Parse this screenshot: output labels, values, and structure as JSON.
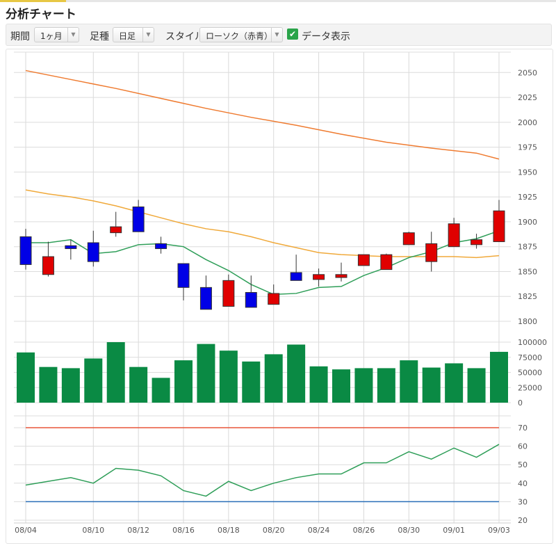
{
  "page": {
    "title": "分析チャート"
  },
  "toolbar": {
    "period_label": "期間",
    "period_value": "1ヶ月",
    "interval_label": "足種",
    "interval_value": "日足",
    "style_label": "スタイル",
    "style_value": "ローソク（赤青）",
    "data_display_label": "データ表示",
    "data_display_checked": true
  },
  "colors": {
    "up": "#e00000",
    "down": "#0000e6",
    "volume": "#0a8a44",
    "ma_short": "#2e9e58",
    "ma_mid": "#f0a93a",
    "ma_long": "#ef7b30",
    "rsi": "#2e9e58",
    "rsi_upper": "#e8553a",
    "rsi_lower": "#2a6fb8"
  },
  "chart_data": [
    {
      "type": "candlestick",
      "panel": "price",
      "ylim": [
        1800,
        2060
      ],
      "y_ticks": [
        "2050",
        "2025",
        "2000",
        "1975",
        "1950",
        "1925",
        "1900",
        "1875",
        "1850",
        "1825",
        "1800"
      ],
      "candles": [
        {
          "o": 1885,
          "h": 1893,
          "l": 1852,
          "c": 1857
        },
        {
          "o": 1847,
          "h": 1880,
          "l": 1845,
          "c": 1865
        },
        {
          "o": 1876,
          "h": 1882,
          "l": 1862,
          "c": 1873
        },
        {
          "o": 1879,
          "h": 1891,
          "l": 1855,
          "c": 1860
        },
        {
          "o": 1889,
          "h": 1910,
          "l": 1885,
          "c": 1895
        },
        {
          "o": 1915,
          "h": 1922,
          "l": 1890,
          "c": 1890
        },
        {
          "o": 1878,
          "h": 1885,
          "l": 1868,
          "c": 1873
        },
        {
          "o": 1858,
          "h": 1858,
          "l": 1821,
          "c": 1834
        },
        {
          "o": 1834,
          "h": 1846,
          "l": 1812,
          "c": 1812
        },
        {
          "o": 1815,
          "h": 1847,
          "l": 1815,
          "c": 1841
        },
        {
          "o": 1829,
          "h": 1846,
          "l": 1814,
          "c": 1814
        },
        {
          "o": 1817,
          "h": 1837,
          "l": 1817,
          "c": 1828
        },
        {
          "o": 1849,
          "h": 1867,
          "l": 1841,
          "c": 1841
        },
        {
          "o": 1842,
          "h": 1853,
          "l": 1835,
          "c": 1847
        },
        {
          "o": 1844,
          "h": 1859,
          "l": 1840,
          "c": 1847
        },
        {
          "o": 1856,
          "h": 1867,
          "l": 1856,
          "c": 1867
        },
        {
          "o": 1852,
          "h": 1868,
          "l": 1852,
          "c": 1867
        },
        {
          "o": 1877,
          "h": 1890,
          "l": 1877,
          "c": 1889
        },
        {
          "o": 1860,
          "h": 1890,
          "l": 1850,
          "c": 1878
        },
        {
          "o": 1875,
          "h": 1904,
          "l": 1875,
          "c": 1898
        },
        {
          "o": 1877,
          "h": 1888,
          "l": 1873,
          "c": 1882
        },
        {
          "o": 1880,
          "h": 1922,
          "l": 1880,
          "c": 1911
        }
      ],
      "ma_short": [
        1879,
        1879,
        1882,
        1868,
        1870,
        1877,
        1878,
        1875,
        1862,
        1851,
        1837,
        1827,
        1828,
        1834,
        1835,
        1846,
        1854,
        1864,
        1870,
        1879,
        1883,
        1891
      ],
      "ma_mid_points": [
        [
          0,
          1932
        ],
        [
          1,
          1928
        ],
        [
          2,
          1925
        ],
        [
          3,
          1921
        ],
        [
          4,
          1916
        ],
        [
          5,
          1910
        ],
        [
          6,
          1904
        ],
        [
          7,
          1898
        ],
        [
          8,
          1893
        ],
        [
          9,
          1890
        ],
        [
          10,
          1885
        ],
        [
          11,
          1879
        ],
        [
          12,
          1874
        ],
        [
          13,
          1869
        ],
        [
          14,
          1867
        ],
        [
          15,
          1866
        ],
        [
          16,
          1865
        ],
        [
          17,
          1865
        ],
        [
          18,
          1865
        ],
        [
          19,
          1865
        ],
        [
          20,
          1864
        ],
        [
          21,
          1866
        ]
      ],
      "ma_long_points": [
        [
          0,
          2052
        ],
        [
          2,
          2043
        ],
        [
          4,
          2034
        ],
        [
          6,
          2024
        ],
        [
          8,
          2014
        ],
        [
          10,
          2005
        ],
        [
          12,
          1997
        ],
        [
          14,
          1988
        ],
        [
          16,
          1980
        ],
        [
          18,
          1974
        ],
        [
          20,
          1969
        ],
        [
          21,
          1963
        ]
      ]
    },
    {
      "type": "bar",
      "panel": "volume",
      "ylim": [
        0,
        100000
      ],
      "y_ticks": [
        "100000",
        "75000",
        "50000",
        "25000",
        "0"
      ],
      "values": [
        83000,
        59000,
        57000,
        73000,
        100000,
        59000,
        41000,
        70000,
        97000,
        86000,
        68000,
        80000,
        96000,
        60000,
        55000,
        57000,
        57000,
        70000,
        58000,
        65000,
        57000,
        84000
      ]
    },
    {
      "type": "line",
      "panel": "rsi",
      "ylim": [
        20,
        70
      ],
      "y_ticks": [
        "70",
        "60",
        "50",
        "40",
        "30",
        "20"
      ],
      "upper_line": 70,
      "lower_line": 30,
      "values": [
        39,
        41,
        43,
        40,
        48,
        47,
        44,
        36,
        33,
        41,
        36,
        40,
        43,
        45,
        45,
        51,
        51,
        57,
        53,
        59,
        54,
        61
      ]
    }
  ],
  "x_axis": {
    "labels": [
      "08/04",
      "08/10",
      "08/12",
      "08/16",
      "08/18",
      "08/20",
      "08/24",
      "08/26",
      "08/30",
      "09/01",
      "09/03"
    ],
    "label_indices": [
      0,
      3,
      5,
      7,
      9,
      11,
      13,
      15,
      17,
      19,
      21
    ]
  }
}
